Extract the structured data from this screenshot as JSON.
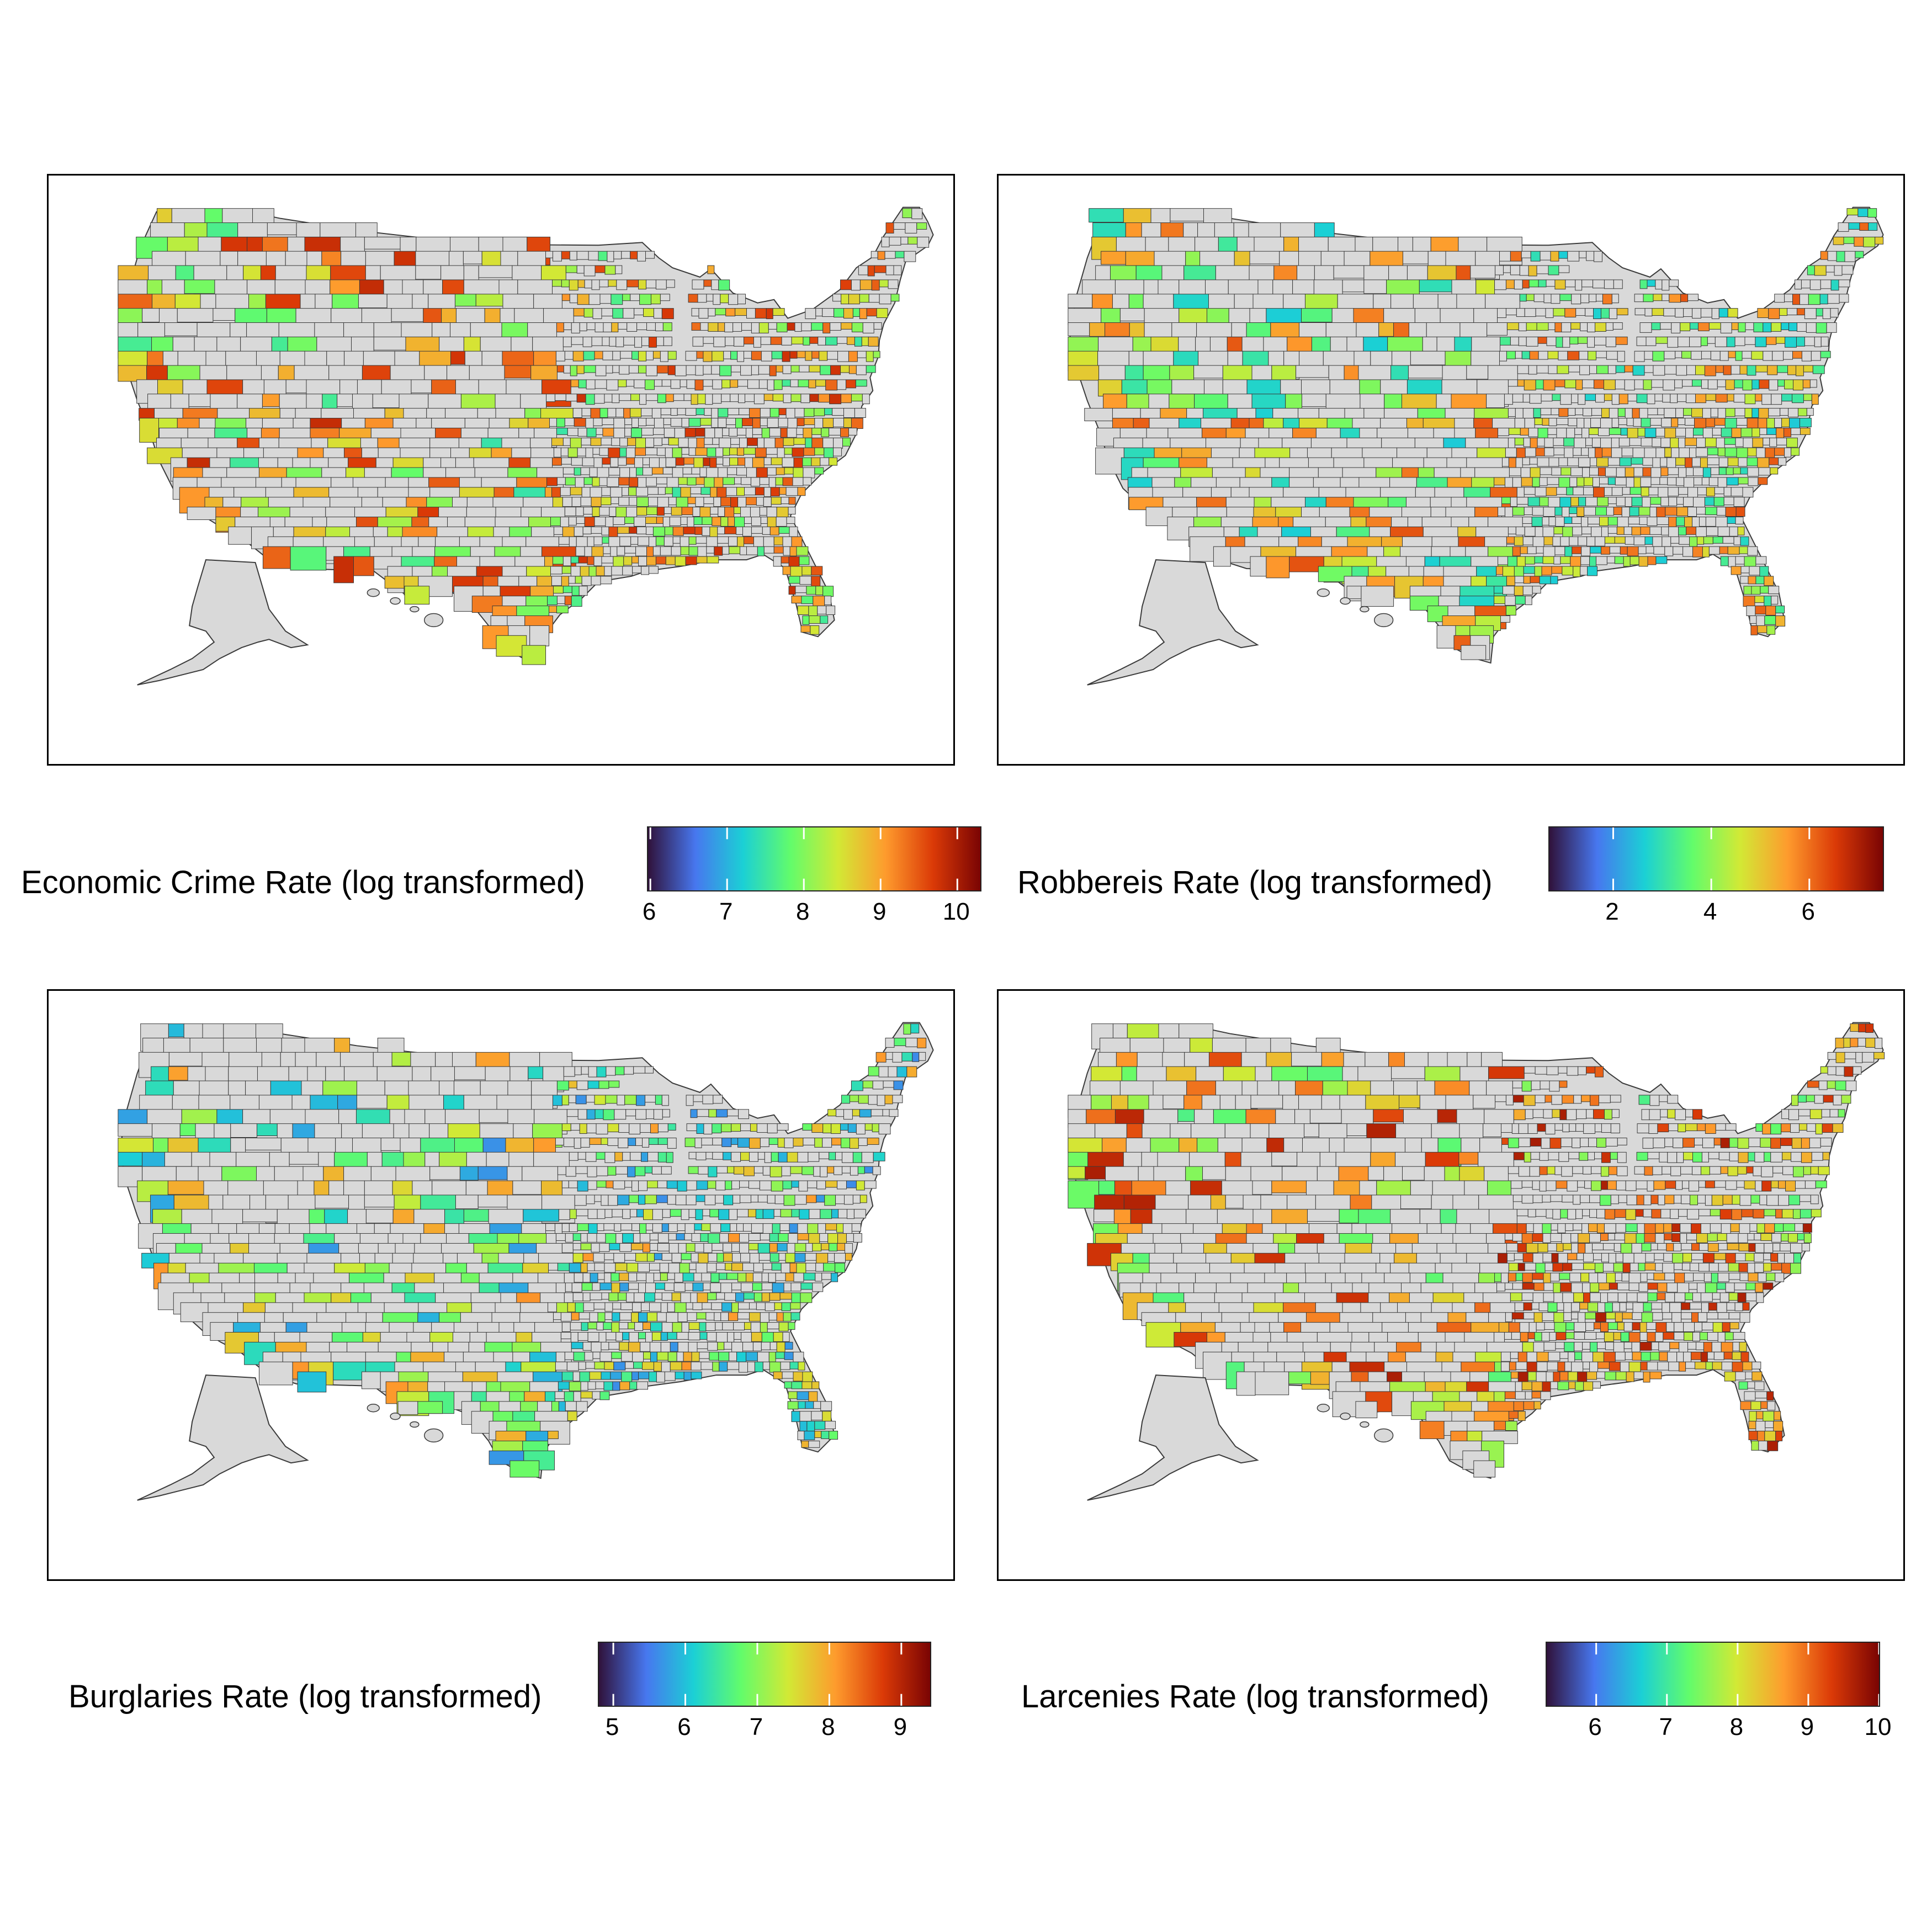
{
  "colors": {
    "county_fill": "#d9d9d9",
    "county_stroke": "#3a3a3a",
    "palette": [
      "#30123b",
      "#4777ef",
      "#1bd0d5",
      "#62fc6b",
      "#d2e935",
      "#fe9b2d",
      "#db3a07",
      "#7a0403"
    ]
  },
  "panels": [
    {
      "id": "economic",
      "legend_title": "Economic Crime Rate (log transformed)",
      "scale": {
        "min": 5.97,
        "max": 10.3,
        "ticks": [
          "6",
          "7",
          "8",
          "9",
          "10"
        ],
        "tick_values": [
          6,
          7,
          8,
          9,
          10
        ]
      },
      "map_bias": 0.62
    },
    {
      "id": "robberies",
      "legend_title": "Robbereis Rate (log transformed)",
      "scale": {
        "min": 0.7,
        "max": 7.5,
        "ticks": [
          "2",
          "4",
          "6"
        ],
        "tick_values": [
          2,
          4,
          6
        ]
      },
      "map_bias": 0.55
    },
    {
      "id": "burglaries",
      "legend_title": "Burglaries Rate (log transformed)",
      "scale": {
        "min": 4.8,
        "max": 9.4,
        "ticks": [
          "5",
          "6",
          "7",
          "8",
          "9"
        ],
        "tick_values": [
          5,
          6,
          7,
          8,
          9
        ]
      },
      "map_bias": 0.45
    },
    {
      "id": "larcenies",
      "legend_title": "Larcenies Rate (log transformed)",
      "scale": {
        "min": 5.3,
        "max": 10.0,
        "ticks": [
          "6",
          "7",
          "8",
          "9",
          "10"
        ],
        "tick_values": [
          6,
          7,
          8,
          9,
          10
        ]
      },
      "map_bias": 0.66
    }
  ]
}
